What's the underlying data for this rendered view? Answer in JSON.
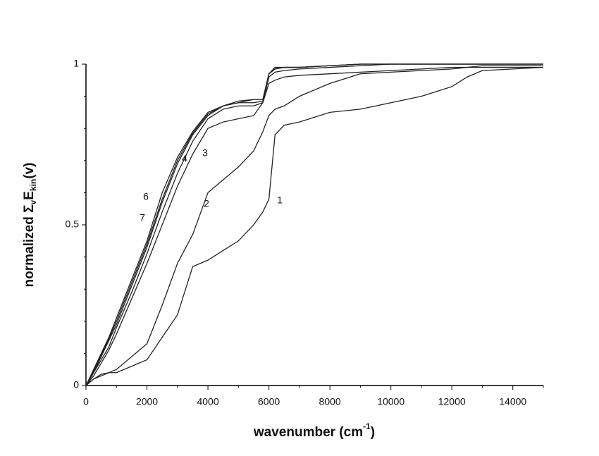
{
  "chart_data": {
    "type": "line",
    "xlabel": [
      "wavenumber (cm",
      "-1",
      ")"
    ],
    "ylabel": [
      "normalized Σ",
      "v",
      "E",
      "kin",
      "(v)"
    ],
    "x": [
      0,
      250,
      500,
      750,
      1000,
      1500,
      2000,
      2500,
      3000,
      3500,
      4000,
      4500,
      5000,
      5500,
      5800,
      6000,
      6200,
      6500,
      7000,
      8000,
      9000,
      10000,
      11000,
      12000,
      12500,
      13000,
      14000,
      15000
    ],
    "series": [
      {
        "name": "1",
        "color": "#222222",
        "values": [
          0,
          0.02,
          0.035,
          0.04,
          0.04,
          0.06,
          0.08,
          0.15,
          0.22,
          0.37,
          0.39,
          0.42,
          0.45,
          0.5,
          0.54,
          0.58,
          0.78,
          0.81,
          0.82,
          0.85,
          0.86,
          0.88,
          0.9,
          0.93,
          0.96,
          0.98,
          0.985,
          0.99
        ]
      },
      {
        "name": "2",
        "color": "#222222",
        "values": [
          0,
          0.02,
          0.03,
          0.04,
          0.05,
          0.09,
          0.13,
          0.25,
          0.38,
          0.47,
          0.6,
          0.64,
          0.68,
          0.73,
          0.79,
          0.84,
          0.86,
          0.87,
          0.9,
          0.94,
          0.97,
          0.975,
          0.98,
          0.985,
          0.99,
          0.99,
          0.99,
          0.99
        ]
      },
      {
        "name": "3",
        "color": "#222222",
        "values": [
          0,
          0.03,
          0.07,
          0.11,
          0.16,
          0.27,
          0.38,
          0.5,
          0.62,
          0.72,
          0.8,
          0.82,
          0.83,
          0.84,
          0.88,
          0.94,
          0.95,
          0.96,
          0.965,
          0.97,
          0.975,
          0.98,
          0.985,
          0.99,
          0.99,
          0.995,
          0.995,
          0.995
        ]
      },
      {
        "name": "4",
        "color": "#222222",
        "values": [
          0,
          0.04,
          0.08,
          0.12,
          0.18,
          0.29,
          0.41,
          0.54,
          0.66,
          0.76,
          0.83,
          0.86,
          0.87,
          0.87,
          0.88,
          0.96,
          0.975,
          0.98,
          0.985,
          0.99,
          0.995,
          1,
          1,
          1,
          1,
          1,
          1,
          1
        ]
      },
      {
        "color": "#222222",
        "values": [
          0,
          0.04,
          0.09,
          0.14,
          0.19,
          0.31,
          0.43,
          0.57,
          0.69,
          0.78,
          0.84,
          0.87,
          0.88,
          0.88,
          0.885,
          0.97,
          0.985,
          0.99,
          0.99,
          0.995,
          1,
          1,
          1,
          1,
          1,
          1,
          1,
          1
        ]
      },
      {
        "name": "6",
        "color": "#222222",
        "values": [
          0,
          0.05,
          0.1,
          0.15,
          0.21,
          0.33,
          0.45,
          0.6,
          0.71,
          0.79,
          0.85,
          0.87,
          0.88,
          0.89,
          0.89,
          0.97,
          0.99,
          0.99,
          0.99,
          0.995,
          1,
          1,
          1,
          1,
          1,
          1,
          1,
          1
        ]
      },
      {
        "name": "7",
        "color": "#222222",
        "values": [
          0,
          0.045,
          0.095,
          0.145,
          0.2,
          0.32,
          0.44,
          0.58,
          0.7,
          0.785,
          0.845,
          0.87,
          0.885,
          0.89,
          0.89,
          0.97,
          0.985,
          0.99,
          0.99,
          0.995,
          1,
          1,
          1,
          1,
          1,
          1,
          1,
          1
        ]
      }
    ],
    "xlim": [
      0,
      15000
    ],
    "xticks": [
      0,
      2000,
      4000,
      6000,
      8000,
      10000,
      12000,
      14000
    ],
    "xminorticks": [
      1000,
      3000,
      5000,
      7000,
      9000,
      11000,
      13000,
      15000
    ],
    "ylim": [
      0,
      1
    ],
    "yticks": [
      0,
      0.5,
      1
    ],
    "yminorticks": [
      0.1,
      0.2,
      0.3,
      0.4,
      0.6,
      0.7,
      0.8,
      0.9
    ],
    "grid": false
  }
}
